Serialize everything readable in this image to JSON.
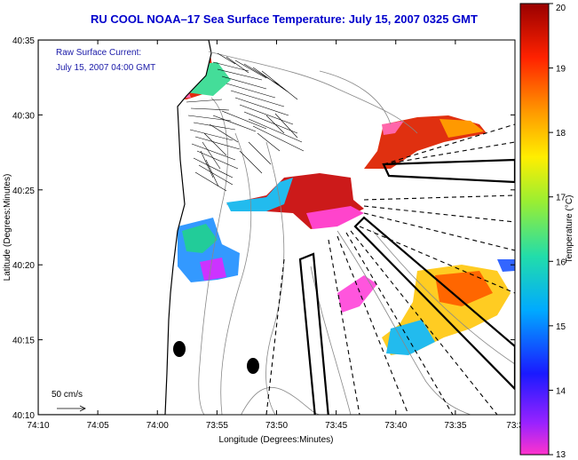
{
  "title": "RU COOL  NOAA–17  Sea Surface Temperature:  July 15, 2007 0325 GMT",
  "overlay": {
    "line1": "Raw Surface Current:",
    "line2": "July 15, 2007 04:00 GMT",
    "scale_label": "50 cm/s"
  },
  "axes": {
    "xlabel": "Longitude (Degrees:Minutes)",
    "ylabel": "Latitude (Degrees:Minutes)",
    "xticks": [
      "74:10",
      "74:05",
      "74:00",
      "73:55",
      "73:50",
      "73:45",
      "73:40",
      "73:35",
      "73:3"
    ],
    "yticks": [
      "40:35",
      "40:30",
      "40:25",
      "40:20",
      "40:15",
      "40:10"
    ]
  },
  "colorbar": {
    "label": "Temperature (°C)",
    "ticks": [
      "20",
      "19",
      "18",
      "17",
      "16",
      "15",
      "14",
      "13"
    ],
    "min": 13,
    "max": 20
  },
  "colors": {
    "title": "#0000cc",
    "overlay_text": "#1a1aa8"
  }
}
